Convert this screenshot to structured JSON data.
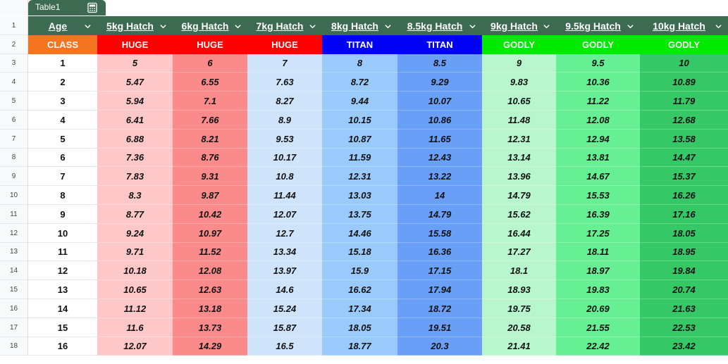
{
  "table": {
    "name": "Table1"
  },
  "row_numbers": [
    "1",
    "2",
    "3",
    "4",
    "5",
    "6",
    "7",
    "8",
    "9",
    "10",
    "11",
    "12",
    "13",
    "14",
    "15",
    "16",
    "17",
    "18"
  ],
  "columns": [
    {
      "header": "Age",
      "class": "CLASS",
      "class_color": "#f4741f",
      "data_color": "#ffffff"
    },
    {
      "header": "5kg Hatch",
      "class": "HUGE",
      "class_color": "#ff0000",
      "data_color": "#ffc8c8"
    },
    {
      "header": "6kg Hatch",
      "class": "HUGE",
      "class_color": "#ff0000",
      "data_color": "#fb8b8b"
    },
    {
      "header": "7kg Hatch",
      "class": "HUGE",
      "class_color": "#ff0000",
      "data_color": "#cfe4fb"
    },
    {
      "header": "8kg Hatch",
      "class": "TITAN",
      "class_color": "#0000f4",
      "data_color": "#99cafb"
    },
    {
      "header": "8.5kg Hatch",
      "class": "TITAN",
      "class_color": "#0000f4",
      "data_color": "#6a9ff8"
    },
    {
      "header": "9kg Hatch",
      "class": "GODLY",
      "class_color": "#00ea00",
      "data_color": "#b8f7cd"
    },
    {
      "header": "9.5kg Hatch",
      "class": "GODLY",
      "class_color": "#00ea00",
      "data_color": "#67ef93"
    },
    {
      "header": "10kg Hatch",
      "class": "GODLY",
      "class_color": "#00ea00",
      "data_color": "#36c766"
    }
  ],
  "rows": [
    [
      "1",
      "5",
      "6",
      "7",
      "8",
      "8.5",
      "9",
      "9.5",
      "10"
    ],
    [
      "2",
      "5.47",
      "6.55",
      "7.63",
      "8.72",
      "9.29",
      "9.83",
      "10.36",
      "10.89"
    ],
    [
      "3",
      "5.94",
      "7.1",
      "8.27",
      "9.44",
      "10.07",
      "10.65",
      "11.22",
      "11.79"
    ],
    [
      "4",
      "6.41",
      "7.66",
      "8.9",
      "10.15",
      "10.86",
      "11.48",
      "12.08",
      "12.68"
    ],
    [
      "5",
      "6.88",
      "8.21",
      "9.53",
      "10.87",
      "11.65",
      "12.31",
      "12.94",
      "13.58"
    ],
    [
      "6",
      "7.36",
      "8.76",
      "10.17",
      "11.59",
      "12.43",
      "13.14",
      "13.81",
      "14.47"
    ],
    [
      "7",
      "7.83",
      "9.31",
      "10.8",
      "12.31",
      "13.22",
      "13.96",
      "14.67",
      "15.37"
    ],
    [
      "8",
      "8.3",
      "9.87",
      "11.44",
      "13.03",
      "14",
      "14.79",
      "15.53",
      "16.26"
    ],
    [
      "9",
      "8.77",
      "10.42",
      "12.07",
      "13.75",
      "14.79",
      "15.62",
      "16.39",
      "17.16"
    ],
    [
      "10",
      "9.24",
      "10.97",
      "12.7",
      "14.46",
      "15.58",
      "16.44",
      "17.25",
      "18.05"
    ],
    [
      "11",
      "9.71",
      "11.52",
      "13.34",
      "15.18",
      "16.36",
      "17.27",
      "18.11",
      "18.95"
    ],
    [
      "12",
      "10.18",
      "12.08",
      "13.97",
      "15.9",
      "17.15",
      "18.1",
      "18.97",
      "19.84"
    ],
    [
      "13",
      "10.65",
      "12.63",
      "14.6",
      "16.62",
      "17.94",
      "18.93",
      "19.83",
      "20.74"
    ],
    [
      "14",
      "11.12",
      "13.18",
      "15.24",
      "17.34",
      "18.72",
      "19.75",
      "20.69",
      "21.63"
    ],
    [
      "15",
      "11.6",
      "13.73",
      "15.87",
      "18.05",
      "19.51",
      "20.58",
      "21.55",
      "22.53"
    ],
    [
      "16",
      "12.07",
      "14.29",
      "16.5",
      "18.77",
      "20.3",
      "21.41",
      "22.42",
      "23.42"
    ]
  ],
  "icons": {
    "tab_menu": "chevron-down-icon",
    "tab_action": "calculator-icon",
    "header_filter": "chevron-down-icon"
  }
}
